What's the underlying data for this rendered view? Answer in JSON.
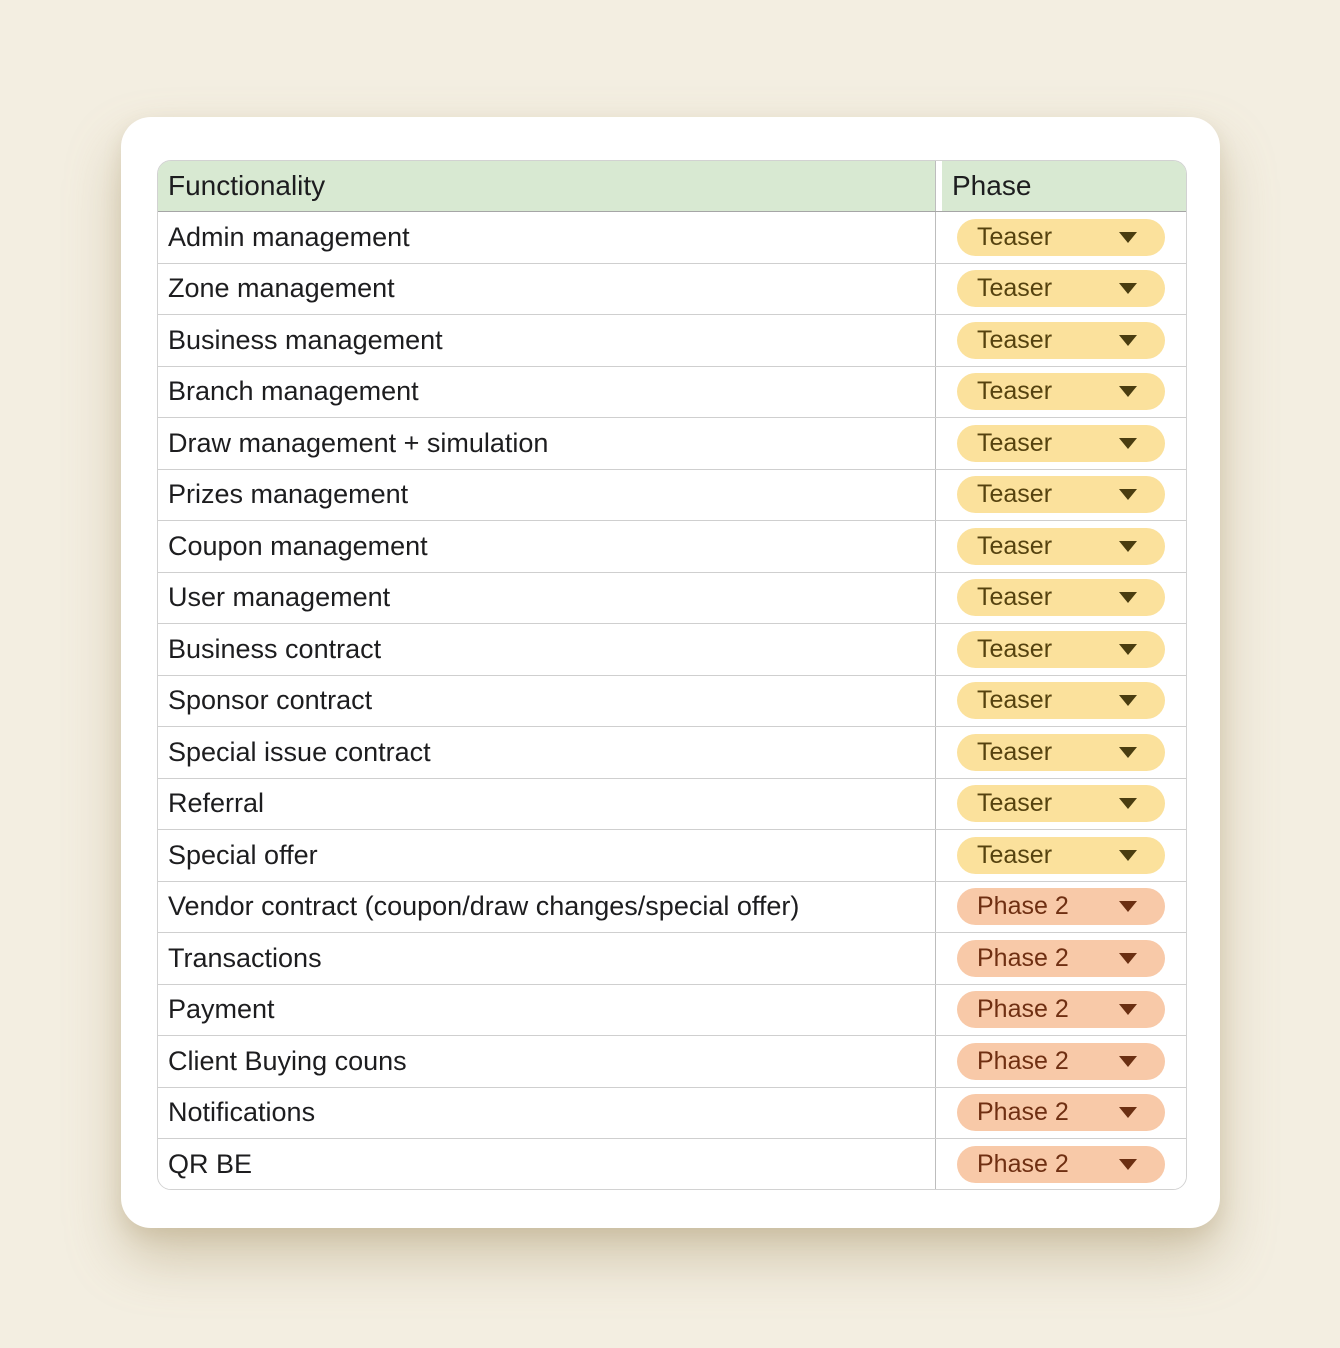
{
  "table": {
    "header": {
      "functionality": "Functionality",
      "phase": "Phase"
    },
    "rows": [
      {
        "functionality": "Admin management",
        "phase": "Teaser"
      },
      {
        "functionality": "Zone management",
        "phase": "Teaser"
      },
      {
        "functionality": "Business management",
        "phase": "Teaser"
      },
      {
        "functionality": "Branch management",
        "phase": "Teaser"
      },
      {
        "functionality": "Draw management + simulation",
        "phase": "Teaser"
      },
      {
        "functionality": "Prizes management",
        "phase": "Teaser"
      },
      {
        "functionality": "Coupon management",
        "phase": "Teaser"
      },
      {
        "functionality": "User management",
        "phase": "Teaser"
      },
      {
        "functionality": "Business contract",
        "phase": "Teaser"
      },
      {
        "functionality": "Sponsor contract",
        "phase": "Teaser"
      },
      {
        "functionality": "Special issue contract",
        "phase": "Teaser"
      },
      {
        "functionality": "Referral",
        "phase": "Teaser"
      },
      {
        "functionality": "Special offer",
        "phase": "Teaser"
      },
      {
        "functionality": "Vendor contract (coupon/draw changes/special offer)",
        "phase": "Phase 2"
      },
      {
        "functionality": "Transactions",
        "phase": "Phase 2"
      },
      {
        "functionality": "Payment",
        "phase": "Phase 2"
      },
      {
        "functionality": "Client Buying couns",
        "phase": "Phase 2"
      },
      {
        "functionality": "Notifications",
        "phase": "Phase 2"
      },
      {
        "functionality": "QR BE",
        "phase": "Phase 2"
      }
    ]
  },
  "phase_styles": {
    "Teaser": {
      "bg": "#fbe19c",
      "text": "#55420f",
      "arrow": "#4a3d10"
    },
    "Phase 2": {
      "bg": "#f8c9a8",
      "text": "#6f2f12",
      "arrow": "#6b2f12"
    }
  },
  "colors": {
    "page_bg": "#f3eee1",
    "card_bg": "#ffffff",
    "header_bg": "#d8e9d2",
    "header_text": "#1d1d1f",
    "row_text": "#1d1d1f",
    "row_border": "#cfcfcf",
    "header_border": "#a6a6a6",
    "col_border": "#bdbdbd",
    "table_border": "#d2d2d2"
  }
}
